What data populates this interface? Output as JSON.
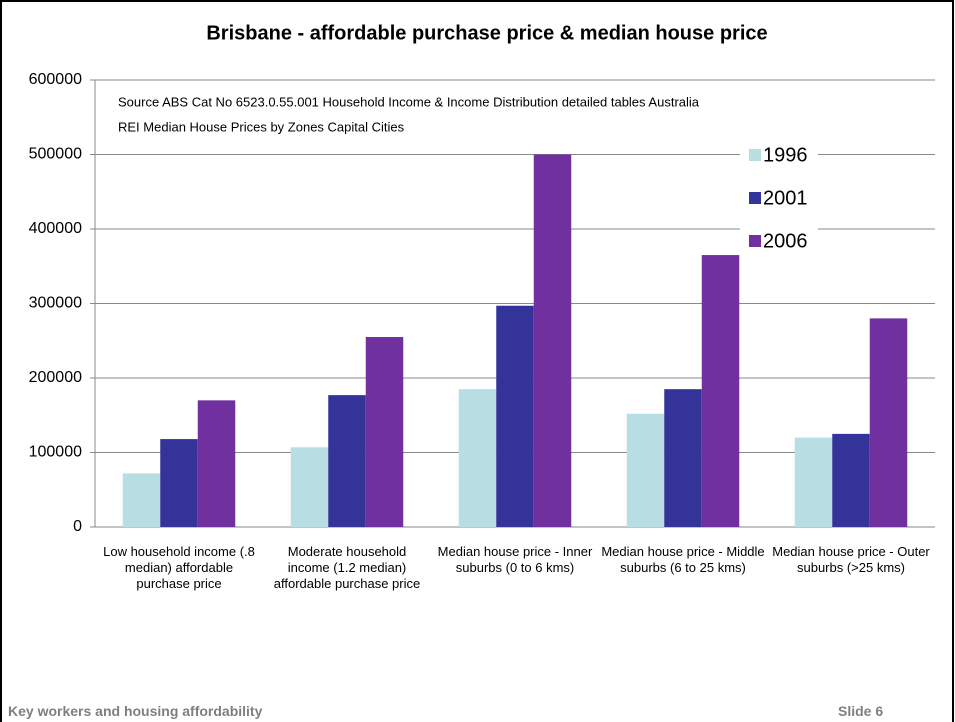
{
  "chart_data": {
    "type": "bar",
    "title": "Brisbane - affordable purchase price & median house price",
    "annotations": [
      "Source ABS Cat No 6523.0.55.001 Household Income & Income Distribution detailed tables Australia",
      "REI Median House Prices by Zones Capital Cities"
    ],
    "categories": [
      "Low household income (.8 median) affordable purchase price",
      "Moderate household income (1.2 median) affordable purchase price",
      "Median house price - Inner suburbs (0 to 6 kms)",
      "Median house price - Middle suburbs (6 to 25 kms)",
      "Median house price - Outer suburbs (>25 kms)"
    ],
    "series": [
      {
        "name": "1996",
        "color": "#b7dee3",
        "values": [
          72000,
          107000,
          185000,
          152000,
          120000
        ]
      },
      {
        "name": "2001",
        "color": "#333399",
        "values": [
          118000,
          177000,
          297000,
          185000,
          125000
        ]
      },
      {
        "name": "2006",
        "color": "#7030a0",
        "values": [
          170000,
          255000,
          500000,
          365000,
          280000
        ]
      }
    ],
    "ylim": [
      0,
      600000
    ],
    "yticks": [
      0,
      100000,
      200000,
      300000,
      400000,
      500000,
      600000
    ],
    "grid": true,
    "legend": "upper right"
  },
  "footer": {
    "left": "Key workers and housing affordability",
    "right": "Slide 6"
  }
}
